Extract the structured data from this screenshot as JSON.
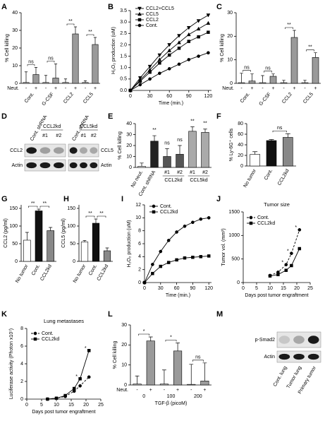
{
  "chart_data": [
    {
      "panel": "A",
      "type": "bar",
      "ylabel": "% Cell killing",
      "categories": [
        "-",
        "+",
        "-",
        "+",
        "-",
        "+",
        "-",
        "+"
      ],
      "groups": [
        "Cont.",
        "G-CSF",
        "CCL2",
        "CCL5"
      ],
      "row_label": "Neut.",
      "values": [
        0.5,
        5,
        0.5,
        3,
        0.5,
        28,
        0.5,
        22
      ],
      "errors": [
        6,
        4,
        4,
        8,
        2,
        4,
        1,
        4
      ],
      "colors": [
        "#c8c8c8",
        "#9a9a9a",
        "#c8c8c8",
        "#9a9a9a",
        "#c8c8c8",
        "#9a9a9a",
        "#c8c8c8",
        "#9a9a9a"
      ],
      "ylim": [
        0,
        40
      ],
      "yticks": [
        0,
        10,
        20,
        30,
        40
      ],
      "annotations": [
        "ns",
        "ns",
        "**",
        "**"
      ]
    },
    {
      "panel": "B",
      "type": "line",
      "xlabel": "Time (min.)",
      "ylabel": "H₂O₂ production (uM)",
      "x": [
        0,
        15,
        30,
        45,
        60,
        75,
        90,
        105,
        120
      ],
      "xlim": [
        0,
        125
      ],
      "xticks": [
        0,
        30,
        60,
        90,
        120
      ],
      "ylim": [
        0,
        3.5
      ],
      "yticks": [
        {
          "value": 0,
          "label": "0.0"
        },
        0.5,
        {
          "value": 1,
          "label": "1.0"
        },
        1.5,
        {
          "value": 2,
          "label": "2.0"
        },
        2.5,
        {
          "value": 3,
          "label": "3.0"
        },
        3.5
      ],
      "series": [
        {
          "name": "CCL2+CCL5",
          "color": "#000000",
          "marker": "triangle-down",
          "values": [
            0,
            0.55,
            1.05,
            1.55,
            2.0,
            2.4,
            2.75,
            3.05,
            3.3
          ]
        },
        {
          "name": "CCL5",
          "color": "#000000",
          "marker": "triangle",
          "values": [
            0,
            0.45,
            0.9,
            1.35,
            1.75,
            2.1,
            2.45,
            2.7,
            2.95
          ]
        },
        {
          "name": "CCL2",
          "color": "#000000",
          "marker": "square",
          "values": [
            0,
            0.4,
            0.8,
            1.2,
            1.55,
            1.85,
            2.15,
            2.35,
            2.55
          ]
        },
        {
          "name": "Cont.",
          "color": "#000000",
          "marker": "circle",
          "values": [
            0,
            0.25,
            0.5,
            0.75,
            0.95,
            1.15,
            1.35,
            1.5,
            1.65
          ]
        }
      ]
    },
    {
      "panel": "C",
      "type": "bar",
      "ylabel": "% Cell killing",
      "categories": [
        "-",
        "+",
        "-",
        "+",
        "-",
        "+",
        "-",
        "+"
      ],
      "groups": [
        "Cont.",
        "G-CSF",
        "CCL2",
        "CCL5"
      ],
      "row_label": "Neut.",
      "values": [
        0.3,
        1,
        0.3,
        3,
        0.3,
        19.5,
        0.3,
        11
      ],
      "errors": [
        4,
        3,
        3,
        1,
        1,
        3,
        1,
        2
      ],
      "colors": [
        "#c8c8c8",
        "#9a9a9a",
        "#c8c8c8",
        "#9a9a9a",
        "#c8c8c8",
        "#9a9a9a",
        "#c8c8c8",
        "#9a9a9a"
      ],
      "ylim": [
        0,
        30
      ],
      "yticks": [
        0,
        10,
        20,
        30
      ],
      "annotations": [
        "ns",
        "ns",
        "**",
        "**"
      ]
    },
    {
      "panel": "D",
      "type": "blot",
      "lane_labels": [
        "Cont. shRNA",
        "#1",
        "#2",
        "Cont. shRNA",
        "#1",
        "#2"
      ],
      "group_labels": [
        "CCL2kd",
        "CCL5kd"
      ],
      "row_labels": [
        "CCL2",
        "Actin",
        "CCL5",
        "Actin"
      ]
    },
    {
      "panel": "E",
      "type": "bar",
      "ylabel": "% Cell killing",
      "categories": [
        "No neut.",
        "Cont. shRNA",
        "#1",
        "#2",
        "#1",
        "#2"
      ],
      "groups": [
        "CCL2kd",
        "CCL5kd"
      ],
      "values": [
        1,
        24,
        10,
        12,
        33,
        32
      ],
      "errors": [
        3,
        5,
        7,
        8,
        4,
        3
      ],
      "colors": [
        "#ffffff",
        "#222222",
        "#555555",
        "#555555",
        "#aaaaaa",
        "#aaaaaa"
      ],
      "ylim": [
        0,
        40
      ],
      "yticks": [
        0,
        10,
        20,
        30,
        40
      ],
      "annotations": [
        "**",
        "ns",
        "ns",
        "**",
        "**"
      ]
    },
    {
      "panel": "F",
      "type": "bar",
      "ylabel": "% Ly-6G⁺ cells",
      "categories": [
        "No tumor",
        "Cont.",
        "CCL2kd"
      ],
      "values": [
        22,
        48,
        54
      ],
      "errors": [
        5,
        2,
        7
      ],
      "colors": [
        "#ffffff",
        "#111111",
        "#888888"
      ],
      "ylim": [
        0,
        80
      ],
      "yticks": [
        0,
        20,
        40,
        60,
        80
      ],
      "annotations": [
        "ns"
      ]
    },
    {
      "panel": "G",
      "type": "bar",
      "ylabel": "CCL2 (pg/ml)",
      "categories": [
        "No tumor",
        "Cont.",
        "CCL2kd"
      ],
      "values": [
        60,
        143,
        87
      ],
      "errors": [
        22,
        5,
        9
      ],
      "colors": [
        "#ffffff",
        "#111111",
        "#888888"
      ],
      "ylim": [
        0,
        160
      ],
      "yticks": [
        0,
        50,
        100,
        150
      ],
      "annotations": [
        "**",
        "**"
      ]
    },
    {
      "panel": "H",
      "type": "bar",
      "ylabel": "CCL5 (pg/ml)",
      "categories": [
        "No tumor",
        "Cont.",
        "CCL2kd"
      ],
      "values": [
        55,
        108,
        30
      ],
      "errors": [
        4,
        12,
        8
      ],
      "colors": [
        "#ffffff",
        "#111111",
        "#888888"
      ],
      "ylim": [
        0,
        160
      ],
      "yticks": [
        0,
        50,
        100,
        150
      ],
      "annotations": [
        "**",
        "**"
      ]
    },
    {
      "panel": "I",
      "type": "line",
      "xlabel": "Time (min.)",
      "ylabel": "H₂O₂ production (uM)",
      "x": [
        0,
        15,
        30,
        45,
        60,
        75,
        90,
        105,
        120
      ],
      "xlim": [
        0,
        125
      ],
      "xticks": [
        0,
        30,
        60,
        90,
        120
      ],
      "ylim": [
        0,
        12
      ],
      "yticks": [
        0,
        2,
        4,
        6,
        8,
        10,
        12
      ],
      "series": [
        {
          "name": "Cont.",
          "color": "#000000",
          "marker": "circle",
          "values": [
            0,
            2.8,
            4.8,
            6.5,
            7.8,
            8.7,
            9.3,
            9.8,
            10.0
          ]
        },
        {
          "name": "CCL2kd",
          "color": "#000000",
          "marker": "square",
          "values": [
            0,
            1.4,
            2.5,
            3.1,
            3.5,
            3.8,
            3.9,
            4.0,
            4.1
          ]
        }
      ]
    },
    {
      "panel": "J",
      "type": "line",
      "title": "Tumor size",
      "xlabel": "Days post tumor engraftment",
      "ylabel": "Tumor vol. (mm³)",
      "x": [
        10,
        13,
        16,
        18,
        21
      ],
      "xlim": [
        0,
        25
      ],
      "xticks": [
        0,
        5,
        10,
        15,
        20,
        25
      ],
      "ylim": [
        0,
        1500
      ],
      "yticks": [
        0,
        500,
        1000,
        1500
      ],
      "series": [
        {
          "name": "Cont.",
          "color": "#000000",
          "marker": "circle",
          "dash": true,
          "values": [
            150,
            220,
            380,
            620,
            1120
          ]
        },
        {
          "name": "CCL2kd",
          "color": "#000000",
          "marker": "square",
          "values": [
            140,
            170,
            260,
            360,
            720
          ]
        }
      ],
      "annotations": [
        "*",
        "*",
        "*"
      ]
    },
    {
      "panel": "K",
      "type": "line",
      "title": "Lung metastases",
      "xlabel": "Days post tumor engraftment",
      "ylabel": "Luciferase activity (Photon x10⁷)",
      "x": [
        7,
        10,
        13,
        16,
        18,
        21
      ],
      "xlim": [
        0,
        25
      ],
      "xticks": [
        0,
        5,
        10,
        15,
        20,
        25
      ],
      "ylim": [
        0,
        8
      ],
      "yticks": [
        0,
        2,
        4,
        6,
        8
      ],
      "series": [
        {
          "name": "Cont.",
          "color": "#000000",
          "marker": "circle",
          "dash": true,
          "values": [
            0,
            0.1,
            0.3,
            0.9,
            1.5,
            2.5
          ]
        },
        {
          "name": "CCL2kd",
          "color": "#000000",
          "marker": "square",
          "values": [
            0,
            0.1,
            0.4,
            1.2,
            2.3,
            5.5
          ]
        }
      ],
      "annotations": [
        "*",
        "*"
      ]
    },
    {
      "panel": "L",
      "type": "bar",
      "ylabel": "% Cell killing",
      "xlabel": "TGF-β (picoM)",
      "categories": [
        "-",
        "+",
        "-",
        "+",
        "-",
        "+"
      ],
      "groups": [
        "0",
        "100",
        "200"
      ],
      "row_label": "Neut.",
      "values": [
        0.5,
        22,
        0.5,
        17,
        0.3,
        2
      ],
      "errors": [
        4,
        2,
        7,
        4,
        10,
        9
      ],
      "colors": [
        "#c8c8c8",
        "#9a9a9a",
        "#c8c8c8",
        "#9a9a9a",
        "#c8c8c8",
        "#9a9a9a"
      ],
      "ylim": [
        0,
        30
      ],
      "yticks": [
        0,
        10,
        20,
        30
      ],
      "annotations": [
        "*",
        "*",
        "ns"
      ]
    },
    {
      "panel": "M",
      "type": "blot",
      "lane_labels": [
        "Cont. lung",
        "Tumor lung",
        "Primary tumor"
      ],
      "row_labels": [
        "p-Smad2",
        "Actin"
      ]
    }
  ]
}
